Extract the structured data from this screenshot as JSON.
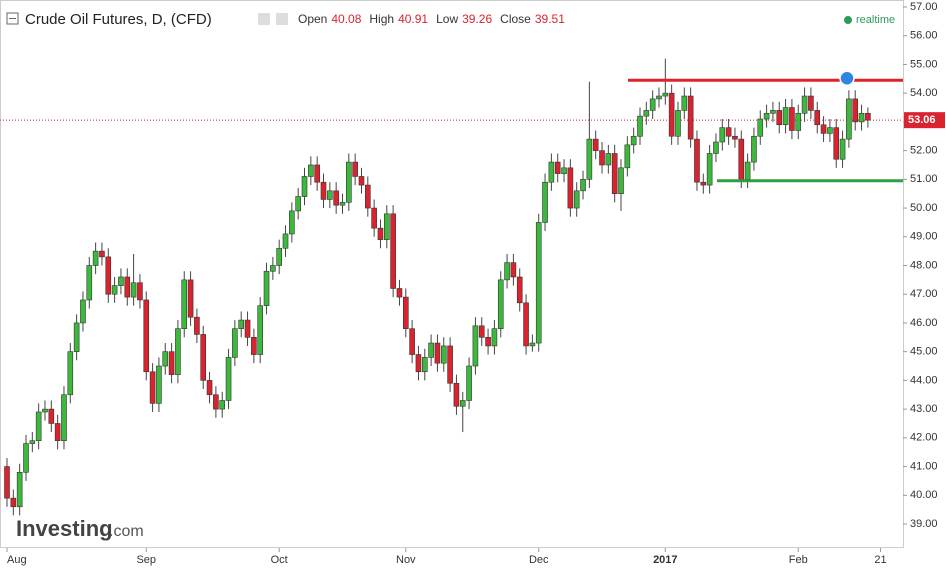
{
  "chart_data": {
    "type": "candlestick",
    "title": "Crude Oil Futures, D, (CFD)",
    "ohlc_labels": [
      "Open",
      "High",
      "Low",
      "Close"
    ],
    "ohlc_values": [
      40.08,
      40.91,
      39.26,
      39.51
    ],
    "status": "realtime",
    "brand": "Investing",
    "brand_suffix": ".com",
    "up_color": "#3cb93c",
    "down_color": "#d9232e",
    "ylim": [
      38.6,
      57.2
    ],
    "yticks": [
      {
        "value": 39,
        "label": "39.00"
      },
      {
        "value": 40,
        "label": "40.00"
      },
      {
        "value": 41,
        "label": "41.00"
      },
      {
        "value": 42,
        "label": "42.00"
      },
      {
        "value": 43,
        "label": "43.00"
      },
      {
        "value": 44,
        "label": "44.00"
      },
      {
        "value": 45,
        "label": "45.00"
      },
      {
        "value": 46,
        "label": "46.00"
      },
      {
        "value": 47,
        "label": "47.00"
      },
      {
        "value": 48,
        "label": "48.00"
      },
      {
        "value": 49,
        "label": "49.00"
      },
      {
        "value": 50,
        "label": "50.00"
      },
      {
        "value": 51,
        "label": "51.00"
      },
      {
        "value": 52,
        "label": "52.00"
      },
      {
        "value": 53,
        "label": "53.00"
      },
      {
        "value": 54,
        "label": "54.00"
      },
      {
        "value": 55,
        "label": "55.00"
      },
      {
        "value": 56,
        "label": "56.00"
      },
      {
        "value": 57,
        "label": "57.00"
      }
    ],
    "xticks": [
      {
        "value": 0,
        "label": "Aug"
      },
      {
        "value": 22,
        "label": "Sep"
      },
      {
        "value": 43,
        "label": "Oct"
      },
      {
        "value": 63,
        "label": "Nov"
      },
      {
        "value": 84,
        "label": "Dec"
      },
      {
        "value": 104,
        "label": "2017"
      },
      {
        "value": 125,
        "label": "Feb"
      },
      {
        "value": 138,
        "label": "21"
      }
    ],
    "last_price": {
      "value": 53.06,
      "label": "53.06",
      "color": "#d9232e"
    },
    "levels": [
      {
        "value": 54.45,
        "color": "#e0202a"
      },
      {
        "value": 50.95,
        "color": "#2ea043"
      }
    ],
    "candles": [
      [
        41.0,
        41.3,
        39.6,
        39.9
      ],
      [
        39.9,
        40.2,
        39.3,
        39.6
      ],
      [
        39.6,
        41.1,
        39.3,
        40.8
      ],
      [
        40.8,
        42.1,
        40.5,
        41.8
      ],
      [
        41.8,
        42.2,
        41.5,
        41.9
      ],
      [
        41.9,
        43.2,
        41.6,
        42.9
      ],
      [
        42.9,
        43.3,
        42.6,
        43.0
      ],
      [
        43.0,
        43.3,
        42.2,
        42.5
      ],
      [
        42.5,
        42.8,
        41.6,
        41.9
      ],
      [
        41.9,
        43.8,
        41.6,
        43.5
      ],
      [
        43.5,
        45.3,
        43.2,
        45.0
      ],
      [
        45.0,
        46.3,
        44.7,
        46.0
      ],
      [
        46.0,
        47.1,
        45.7,
        46.8
      ],
      [
        46.8,
        48.3,
        46.5,
        48.0
      ],
      [
        48.0,
        48.8,
        47.7,
        48.5
      ],
      [
        48.5,
        48.8,
        48.0,
        48.3
      ],
      [
        48.3,
        48.6,
        46.7,
        47.0
      ],
      [
        47.0,
        47.6,
        46.7,
        47.3
      ],
      [
        47.3,
        47.9,
        47.0,
        47.6
      ],
      [
        47.6,
        47.9,
        46.6,
        46.9
      ],
      [
        46.9,
        48.4,
        46.6,
        47.4
      ],
      [
        47.4,
        47.7,
        46.5,
        46.8
      ],
      [
        46.8,
        47.1,
        44.0,
        44.3
      ],
      [
        44.3,
        44.6,
        42.9,
        43.2
      ],
      [
        43.2,
        44.8,
        42.9,
        44.5
      ],
      [
        44.5,
        45.3,
        44.2,
        45.0
      ],
      [
        45.0,
        45.3,
        43.9,
        44.2
      ],
      [
        44.2,
        46.1,
        43.9,
        45.8
      ],
      [
        45.8,
        47.8,
        45.5,
        47.5
      ],
      [
        47.5,
        47.8,
        45.9,
        46.2
      ],
      [
        46.2,
        46.5,
        45.3,
        45.6
      ],
      [
        45.6,
        45.9,
        43.7,
        44.0
      ],
      [
        44.0,
        44.3,
        43.2,
        43.5
      ],
      [
        43.5,
        43.8,
        42.7,
        43.0
      ],
      [
        43.0,
        43.6,
        42.7,
        43.3
      ],
      [
        43.3,
        45.1,
        43.0,
        44.8
      ],
      [
        44.8,
        46.1,
        44.5,
        45.8
      ],
      [
        45.8,
        46.4,
        45.5,
        46.1
      ],
      [
        46.1,
        46.4,
        45.2,
        45.5
      ],
      [
        45.5,
        45.8,
        44.6,
        44.9
      ],
      [
        44.9,
        46.9,
        44.6,
        46.6
      ],
      [
        46.6,
        48.1,
        46.3,
        47.8
      ],
      [
        47.8,
        48.3,
        47.5,
        48.0
      ],
      [
        48.0,
        48.9,
        47.7,
        48.6
      ],
      [
        48.6,
        49.4,
        48.3,
        49.1
      ],
      [
        49.1,
        50.2,
        48.8,
        49.9
      ],
      [
        49.9,
        50.7,
        49.6,
        50.4
      ],
      [
        50.4,
        51.4,
        50.1,
        51.1
      ],
      [
        51.1,
        51.8,
        50.8,
        51.5
      ],
      [
        51.5,
        51.8,
        50.6,
        50.9
      ],
      [
        50.9,
        51.2,
        50.0,
        50.3
      ],
      [
        50.3,
        50.9,
        50.0,
        50.6
      ],
      [
        50.6,
        50.9,
        49.8,
        50.1
      ],
      [
        50.1,
        50.5,
        49.8,
        50.2
      ],
      [
        50.2,
        51.9,
        49.9,
        51.6
      ],
      [
        51.6,
        51.9,
        50.8,
        51.1
      ],
      [
        51.1,
        51.4,
        50.5,
        50.8
      ],
      [
        50.8,
        51.1,
        49.7,
        50.0
      ],
      [
        50.0,
        50.3,
        49.0,
        49.3
      ],
      [
        49.3,
        49.6,
        48.6,
        48.9
      ],
      [
        48.9,
        50.1,
        48.6,
        49.8
      ],
      [
        49.8,
        50.1,
        46.9,
        47.2
      ],
      [
        47.2,
        47.5,
        46.6,
        46.9
      ],
      [
        46.9,
        47.2,
        45.5,
        45.8
      ],
      [
        45.8,
        46.1,
        44.6,
        44.9
      ],
      [
        44.9,
        45.2,
        44.0,
        44.3
      ],
      [
        44.3,
        45.1,
        44.0,
        44.8
      ],
      [
        44.8,
        45.6,
        44.5,
        45.3
      ],
      [
        45.3,
        45.6,
        44.3,
        44.6
      ],
      [
        44.6,
        45.5,
        44.3,
        45.2
      ],
      [
        45.2,
        45.5,
        43.6,
        43.9
      ],
      [
        43.9,
        44.2,
        42.8,
        43.1
      ],
      [
        43.1,
        43.6,
        42.2,
        43.3
      ],
      [
        43.3,
        44.8,
        43.0,
        44.5
      ],
      [
        44.5,
        46.2,
        44.2,
        45.9
      ],
      [
        45.9,
        46.2,
        45.2,
        45.5
      ],
      [
        45.5,
        45.8,
        44.9,
        45.2
      ],
      [
        45.2,
        46.1,
        44.9,
        45.8
      ],
      [
        45.8,
        47.8,
        45.5,
        47.5
      ],
      [
        47.5,
        48.4,
        47.2,
        48.1
      ],
      [
        48.1,
        48.4,
        47.3,
        47.6
      ],
      [
        47.6,
        47.9,
        46.4,
        46.7
      ],
      [
        46.7,
        47.0,
        44.9,
        45.2
      ],
      [
        45.2,
        45.6,
        45.0,
        45.3
      ],
      [
        45.3,
        49.8,
        45.0,
        49.5
      ],
      [
        49.5,
        51.2,
        49.2,
        50.9
      ],
      [
        50.9,
        51.9,
        50.6,
        51.6
      ],
      [
        51.6,
        51.9,
        50.9,
        51.2
      ],
      [
        51.2,
        51.7,
        50.9,
        51.4
      ],
      [
        51.4,
        51.7,
        49.7,
        50.0
      ],
      [
        50.0,
        50.9,
        49.7,
        50.6
      ],
      [
        50.6,
        51.3,
        50.3,
        51.0
      ],
      [
        51.0,
        54.4,
        50.7,
        52.4
      ],
      [
        52.4,
        52.7,
        51.7,
        52.0
      ],
      [
        52.0,
        52.3,
        51.2,
        51.5
      ],
      [
        51.5,
        52.2,
        51.2,
        51.9
      ],
      [
        51.9,
        52.2,
        50.2,
        50.5
      ],
      [
        50.5,
        51.7,
        49.9,
        51.4
      ],
      [
        51.4,
        52.5,
        51.1,
        52.2
      ],
      [
        52.2,
        52.8,
        51.9,
        52.5
      ],
      [
        52.5,
        53.5,
        52.2,
        53.2
      ],
      [
        53.2,
        53.7,
        52.9,
        53.4
      ],
      [
        53.4,
        54.1,
        53.1,
        53.8
      ],
      [
        53.8,
        54.2,
        53.5,
        53.9
      ],
      [
        53.9,
        55.2,
        53.6,
        54.0
      ],
      [
        54.0,
        54.3,
        52.2,
        52.5
      ],
      [
        52.5,
        53.7,
        52.2,
        53.4
      ],
      [
        53.4,
        54.2,
        53.1,
        53.9
      ],
      [
        53.9,
        54.2,
        52.1,
        52.4
      ],
      [
        52.4,
        52.7,
        50.6,
        50.9
      ],
      [
        50.9,
        51.2,
        50.5,
        50.8
      ],
      [
        50.8,
        52.2,
        50.5,
        51.9
      ],
      [
        51.9,
        52.6,
        51.6,
        52.3
      ],
      [
        52.3,
        53.1,
        52.0,
        52.8
      ],
      [
        52.8,
        53.1,
        52.2,
        52.5
      ],
      [
        52.5,
        52.8,
        52.1,
        52.4
      ],
      [
        52.4,
        52.7,
        50.7,
        51.0
      ],
      [
        51.0,
        51.9,
        50.7,
        51.6
      ],
      [
        51.6,
        52.8,
        51.3,
        52.5
      ],
      [
        52.5,
        53.4,
        52.2,
        53.1
      ],
      [
        53.1,
        53.6,
        52.8,
        53.3
      ],
      [
        53.3,
        53.7,
        53.0,
        53.4
      ],
      [
        53.4,
        53.7,
        52.6,
        52.9
      ],
      [
        52.9,
        53.8,
        52.6,
        53.5
      ],
      [
        53.5,
        53.8,
        52.4,
        52.7
      ],
      [
        52.7,
        53.6,
        52.4,
        53.3
      ],
      [
        53.3,
        54.2,
        53.0,
        53.9
      ],
      [
        53.9,
        54.2,
        53.1,
        53.4
      ],
      [
        53.4,
        53.7,
        52.6,
        52.9
      ],
      [
        52.9,
        53.2,
        52.3,
        52.6
      ],
      [
        52.6,
        53.1,
        52.3,
        52.8
      ],
      [
        52.8,
        53.1,
        51.4,
        51.7
      ],
      [
        51.7,
        52.7,
        51.4,
        52.4
      ],
      [
        52.4,
        54.1,
        52.1,
        53.8
      ],
      [
        53.8,
        54.1,
        52.7,
        53.0
      ],
      [
        53.0,
        53.6,
        52.7,
        53.3
      ],
      [
        53.3,
        53.5,
        52.8,
        53.06
      ]
    ]
  }
}
